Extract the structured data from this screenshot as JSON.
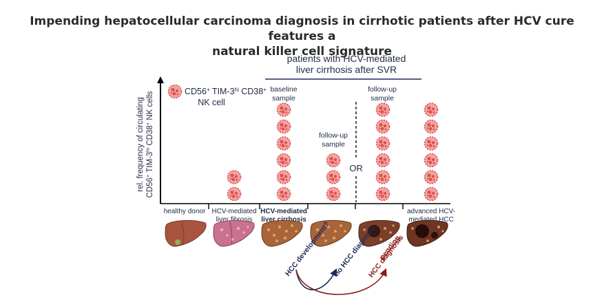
{
  "title_line1": "Impending hepatocellular carcinoma diagnosis in cirrhotic patients after HCV cure features a",
  "title_line2": "natural killer cell signature",
  "group_header_line1": "patients with HCV-mediated",
  "group_header_line2": "liver cirrhosis after SVR",
  "y_axis_line1": "rel. frequency of circulating",
  "y_axis_line2_a": "CD56",
  "y_axis_line2_sup1": "+",
  "y_axis_line2_b": " TIM-3",
  "y_axis_line2_sup2": "hi",
  "y_axis_line2_c": " CD38",
  "y_axis_line2_sup3": "+",
  "y_axis_line2_d": " NK cells",
  "legend_a": "CD56",
  "legend_sup1": "+",
  "legend_b": " TIM-3",
  "legend_sup2": "hi",
  "legend_c": " CD38",
  "legend_sup3": "+",
  "legend_line2": "NK cell",
  "baseline_line1": "baseline",
  "baseline_line2": "sample",
  "followup_left_line1": "follow-up",
  "followup_left_line2": "sample",
  "followup_right_line1": "follow-up",
  "followup_right_line2": "sample",
  "or_label": "OR",
  "groups": [
    {
      "line1": "healthy donor",
      "line2": "",
      "bold": false,
      "cells": 0
    },
    {
      "line1": "HCV-mediated",
      "line2": "liver fibrosis",
      "bold": false,
      "cells": 2
    },
    {
      "line1": "HCV-mediated",
      "line2": "liver cirrhosis",
      "bold": true,
      "cells": 6
    },
    {
      "line1": "",
      "line2": "",
      "bold": false,
      "cells": 3
    },
    {
      "line1": "",
      "line2": "",
      "bold": false,
      "cells": 6
    },
    {
      "line1": "advanced HCV-",
      "line2": "mediated HCC",
      "bold": false,
      "cells": 6
    }
  ],
  "arrow_dev": "HCC development?",
  "arrow_no": "no HCC diagnosis",
  "arrow_pending_line1": "pending",
  "arrow_pending_line2": "HCC diagnosis",
  "colors": {
    "cell_fill": "#f08a8a",
    "cell_outline": "#d9534f",
    "navy": "#1f2a5a",
    "darkred": "#8b1a1a",
    "liver_healthy": "#a8543f",
    "liver_fibrosis": "#c9718e",
    "liver_cirrhosis": "#a8643a"
  }
}
